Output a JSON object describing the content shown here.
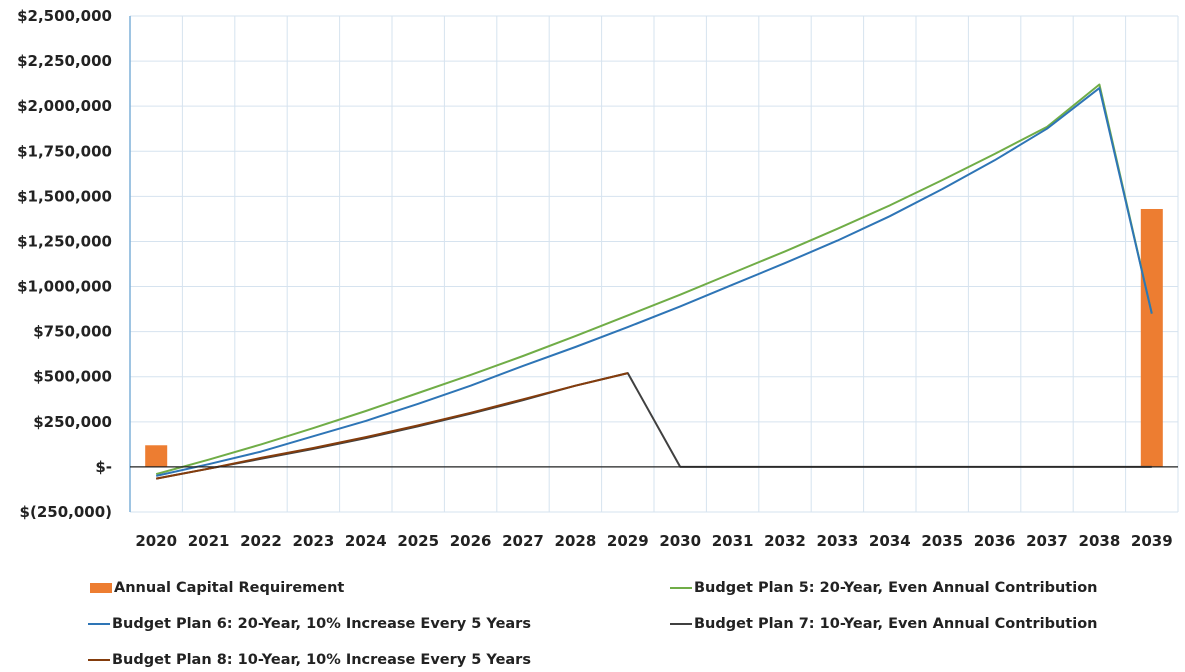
{
  "chart_data": {
    "type": "bar",
    "x": [
      "2020",
      "2021",
      "2022",
      "2023",
      "2024",
      "2025",
      "2026",
      "2027",
      "2028",
      "2029",
      "2030",
      "2031",
      "2032",
      "2033",
      "2034",
      "2035",
      "2036",
      "2037",
      "2038",
      "2039"
    ],
    "ylim": [
      -250000,
      2500000
    ],
    "yticks": [
      2500000,
      2250000,
      2000000,
      1750000,
      1500000,
      1250000,
      1000000,
      750000,
      500000,
      250000,
      0,
      -250000
    ],
    "ytick_labels": [
      "$2,500,000",
      "$2,250,000",
      "$2,000,000",
      "$1,750,000",
      "$1,500,000",
      "$1,250,000",
      "$1,000,000",
      "$750,000",
      "$500,000",
      "$250,000",
      "$-",
      "$(250,000)"
    ],
    "grid": true,
    "legend_position": "bottom",
    "bars": {
      "name": "Annual Capital Requirement",
      "color": "#ED7D31",
      "values": [
        120000,
        0,
        0,
        0,
        0,
        0,
        0,
        0,
        0,
        0,
        0,
        0,
        0,
        0,
        0,
        0,
        0,
        0,
        0,
        1430000
      ]
    },
    "series": [
      {
        "name": "Budget Plan 5: 20-Year, Even Annual Contribution",
        "color": "#70AD47",
        "values": [
          -40000,
          40000,
          125000,
          215000,
          310000,
          410000,
          510000,
          615000,
          725000,
          840000,
          955000,
          1075000,
          1195000,
          1320000,
          1450000,
          1590000,
          1735000,
          1885000,
          2120000,
          850000
        ]
      },
      {
        "name": "Budget Plan 6: 20-Year, 10% Increase Every 5 Years",
        "color": "#2E75B6",
        "values": [
          -50000,
          15000,
          85000,
          170000,
          255000,
          350000,
          450000,
          560000,
          665000,
          775000,
          890000,
          1010000,
          1130000,
          1255000,
          1390000,
          1540000,
          1700000,
          1875000,
          2100000,
          850000
        ]
      },
      {
        "name": "Budget Plan 7: 10-Year, Even Annual Contribution",
        "color": "#404040",
        "values": [
          -65000,
          -10000,
          45000,
          100000,
          160000,
          225000,
          295000,
          370000,
          450000,
          520000,
          0,
          0,
          0,
          0,
          0,
          0,
          0,
          0,
          0,
          0
        ]
      },
      {
        "name": "Budget Plan 8: 10-Year, 10% Increase Every 5 Years",
        "color": "#843C0C",
        "values": [
          -65000,
          -10000,
          50000,
          105000,
          165000,
          230000,
          300000,
          375000,
          450000,
          520000,
          null,
          null,
          null,
          null,
          null,
          null,
          null,
          null,
          null,
          null
        ]
      }
    ]
  }
}
